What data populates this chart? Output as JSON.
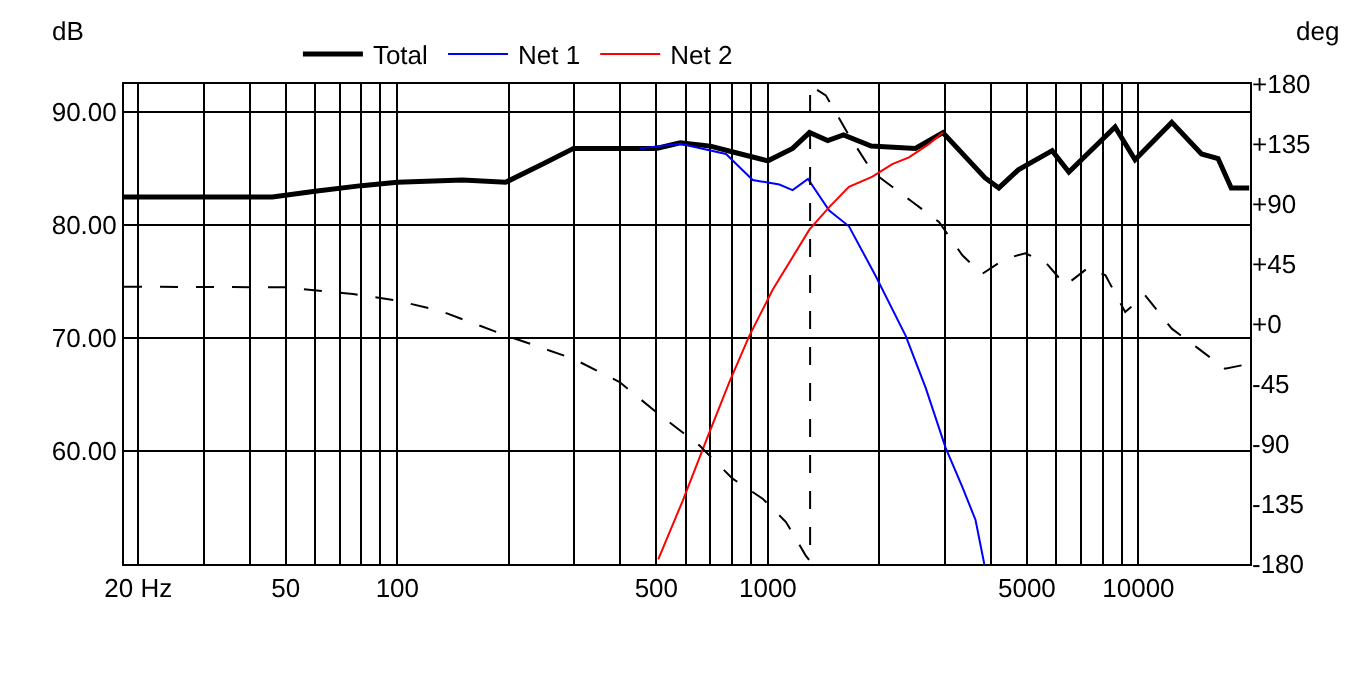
{
  "chart_data": {
    "type": "line",
    "ylabel": "dB",
    "y2label": "deg",
    "xlim": [
      18.3,
      20000
    ],
    "log": "x",
    "xticks": [
      {
        "value": 20,
        "label": "20 Hz"
      },
      {
        "value": 30,
        "label": null
      },
      {
        "value": 40,
        "label": null
      },
      50,
      {
        "value": 60,
        "label": null
      },
      {
        "value": 70,
        "label": null
      },
      {
        "value": 80,
        "label": null
      },
      {
        "value": 90,
        "label": null
      },
      100,
      {
        "value": 200,
        "label": null
      },
      {
        "value": 300,
        "label": null
      },
      {
        "value": 400,
        "label": null
      },
      500,
      {
        "value": 600,
        "label": null
      },
      {
        "value": 700,
        "label": null
      },
      {
        "value": 800,
        "label": null
      },
      {
        "value": 900,
        "label": null
      },
      1000,
      {
        "value": 2000,
        "label": null
      },
      {
        "value": 3000,
        "label": null
      },
      {
        "value": 4000,
        "label": null
      },
      5000,
      {
        "value": 6000,
        "label": null
      },
      {
        "value": 7000,
        "label": null
      },
      {
        "value": 8000,
        "label": null
      },
      {
        "value": 9000,
        "label": null
      },
      10000
    ],
    "ylim": [
      50,
      92.5
    ],
    "yticks": [
      {
        "value": 60,
        "label": "60.00"
      },
      {
        "value": 70,
        "label": "70.00"
      },
      {
        "value": 80,
        "label": "80.00"
      },
      {
        "value": 90,
        "label": "90.00"
      }
    ],
    "y2lim": [
      -180,
      180
    ],
    "y2ticks": [
      {
        "value": 180,
        "label": "+180"
      },
      {
        "value": 135,
        "label": "+135"
      },
      {
        "value": 90,
        "label": "+90"
      },
      {
        "value": 45,
        "label": "+45"
      },
      {
        "value": 0,
        "label": "+0"
      },
      -45,
      -90,
      -135,
      -180
    ],
    "grid": true,
    "legend": "top left",
    "marker": "none",
    "series": [
      {
        "name": "Total",
        "color": "#000000",
        "x": [
          18.3,
          46,
          60,
          80,
          100,
          150,
          196,
          250,
          299,
          500,
          580,
          700,
          800,
          1000,
          1166,
          1295,
          1450,
          1600,
          1900,
          2500,
          2967,
          3850,
          4200,
          4740,
          5850,
          6490,
          8650,
          9790,
          12300,
          14800,
          16400,
          17800,
          19900
        ],
        "values": [
          82.5,
          82.5,
          83,
          83.5,
          83.8,
          84,
          83.8,
          85.5,
          86.8,
          86.8,
          87.3,
          87,
          86.5,
          85.7,
          86.8,
          88.2,
          87.5,
          88,
          87,
          86.8,
          88.2,
          84.2,
          83.3,
          84.9,
          86.6,
          84.7,
          88.7,
          85.8,
          89.1,
          86.3,
          85.9,
          83.3,
          83.3
        ]
      },
      {
        "name": "Net 1",
        "color": "#0000ff",
        "x": [
          451,
          580,
          771,
          910,
          1074,
          1166,
          1283,
          1464,
          1655,
          1954,
          2355,
          2666,
          3016,
          3349,
          3634,
          3837
        ],
        "values": [
          86.8,
          87.2,
          86.3,
          84,
          83.6,
          83.1,
          84.1,
          81.3,
          79.9,
          75.5,
          70.2,
          65.6,
          60.3,
          56.8,
          53.9,
          50
        ]
      },
      {
        "name": "Net 2",
        "color": "#ff0000",
        "x": [
          506,
          589,
          681,
          787,
          891,
          1031,
          1294,
          1464,
          1655,
          1915,
          2166,
          2403,
          2723,
          2967
        ],
        "values": [
          50.4,
          55.6,
          60.9,
          66.1,
          70.2,
          74.3,
          79.6,
          81.6,
          83.4,
          84.3,
          85.4,
          86,
          87.2,
          88.2
        ]
      },
      {
        "color": "#000000",
        "axis": "y2",
        "line_style": "dashed",
        "x": [
          18.3,
          50,
          76,
          100,
          130,
          196,
          298,
          398,
          499,
          653,
          803,
          968,
          1119,
          1264,
          1300,
          1300,
          1433,
          1655,
          1915,
          2456,
          2896,
          3349,
          3784,
          4373,
          4954,
          5607,
          6353,
          7344,
          8147,
          9210,
          10420,
          12300,
          14520,
          17130,
          19000
        ],
        "values": [
          28,
          27.5,
          22.5,
          17.5,
          10,
          -8.5,
          -26,
          -43.5,
          -66,
          -91,
          -116,
          -131,
          -148.5,
          -173.5,
          -178,
          179,
          171.5,
          141.5,
          114,
          91.5,
          76.5,
          51.5,
          37.5,
          49,
          53,
          46.5,
          29,
          42.5,
          36.5,
          9,
          21.5,
          -3.5,
          -18.5,
          -33.5,
          -31
        ]
      }
    ]
  }
}
